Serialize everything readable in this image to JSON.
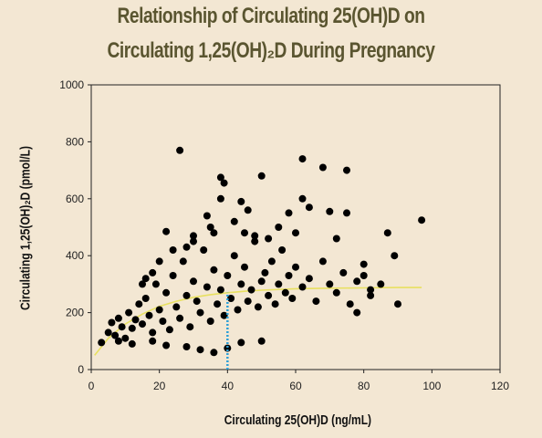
{
  "slide": {
    "title_line1": "Relationship of Circulating 25(OH)D on",
    "title_line2": "Circulating 1,25(OH)₂D During Pregnancy",
    "background": "#f3e7d3",
    "title_color": "#5a5530"
  },
  "chart_data": {
    "type": "scatter",
    "title": "Relationship of Circulating 25(OH)D on Circulating 1,25(OH)₂D During Pregnancy",
    "xlabel": "Circulating 25(OH)D (ng/mL)",
    "ylabel": "Circulating 1,25(OH)₂D (pmol/L)",
    "xlim": [
      0,
      120
    ],
    "ylim": [
      0,
      1000
    ],
    "xticks": [
      "0",
      "20",
      "40",
      "60",
      "80",
      "100",
      "120"
    ],
    "yticks": [
      "0",
      "200",
      "400",
      "600",
      "800",
      "1000"
    ],
    "grid": false,
    "legend": "none",
    "point_color": "#000000",
    "fit_color": "#e8e060",
    "reference_line_color": "#2a9fd8",
    "series": [
      {
        "values_note_free": true,
        "points": [
          [
            3,
            95
          ],
          [
            5,
            130
          ],
          [
            6,
            165
          ],
          [
            7,
            120
          ],
          [
            8,
            180
          ],
          [
            9,
            150
          ],
          [
            10,
            110
          ],
          [
            11,
            200
          ],
          [
            12,
            145
          ],
          [
            13,
            175
          ],
          [
            14,
            230
          ],
          [
            15,
            160
          ],
          [
            16,
            250
          ],
          [
            17,
            190
          ],
          [
            18,
            130
          ],
          [
            19,
            300
          ],
          [
            20,
            210
          ],
          [
            21,
            170
          ],
          [
            22,
            270
          ],
          [
            23,
            140
          ],
          [
            24,
            330
          ],
          [
            25,
            220
          ],
          [
            26,
            180
          ],
          [
            27,
            380
          ],
          [
            28,
            260
          ],
          [
            29,
            150
          ],
          [
            30,
            310
          ],
          [
            31,
            240
          ],
          [
            32,
            200
          ],
          [
            33,
            420
          ],
          [
            34,
            290
          ],
          [
            35,
            170
          ],
          [
            36,
            350
          ],
          [
            37,
            230
          ],
          [
            38,
            280
          ],
          [
            39,
            190
          ],
          [
            40,
            330
          ],
          [
            41,
            250
          ],
          [
            42,
            400
          ],
          [
            43,
            210
          ],
          [
            44,
            300
          ],
          [
            45,
            360
          ],
          [
            46,
            240
          ],
          [
            47,
            280
          ],
          [
            48,
            450
          ],
          [
            49,
            220
          ],
          [
            50,
            310
          ],
          [
            51,
            340
          ],
          [
            52,
            260
          ],
          [
            53,
            380
          ],
          [
            54,
            230
          ],
          [
            55,
            300
          ],
          [
            56,
            420
          ],
          [
            57,
            270
          ],
          [
            58,
            330
          ],
          [
            59,
            250
          ],
          [
            60,
            360
          ],
          [
            62,
            290
          ],
          [
            64,
            320
          ],
          [
            66,
            240
          ],
          [
            68,
            380
          ],
          [
            70,
            300
          ],
          [
            72,
            270
          ],
          [
            74,
            340
          ],
          [
            76,
            230
          ],
          [
            78,
            310
          ],
          [
            80,
            370
          ],
          [
            82,
            260
          ],
          [
            85,
            300
          ],
          [
            90,
            230
          ],
          [
            26,
            770
          ],
          [
            38,
            675
          ],
          [
            39,
            655
          ],
          [
            38,
            600
          ],
          [
            44,
            590
          ],
          [
            50,
            680
          ],
          [
            62,
            740
          ],
          [
            68,
            710
          ],
          [
            75,
            700
          ],
          [
            97,
            525
          ],
          [
            87,
            480
          ],
          [
            89,
            400
          ],
          [
            62,
            600
          ],
          [
            64,
            570
          ],
          [
            75,
            550
          ],
          [
            58,
            550
          ],
          [
            70,
            555
          ],
          [
            46,
            560
          ],
          [
            34,
            540
          ],
          [
            42,
            520
          ],
          [
            80,
            330
          ],
          [
            78,
            200
          ],
          [
            82,
            280
          ],
          [
            72,
            460
          ],
          [
            60,
            480
          ],
          [
            55,
            500
          ],
          [
            45,
            480
          ],
          [
            30,
            470
          ],
          [
            22,
            485
          ],
          [
            35,
            500
          ],
          [
            8,
            100
          ],
          [
            12,
            90
          ],
          [
            18,
            100
          ],
          [
            22,
            85
          ],
          [
            28,
            80
          ],
          [
            32,
            70
          ],
          [
            36,
            60
          ],
          [
            40,
            75
          ],
          [
            44,
            95
          ],
          [
            50,
            100
          ],
          [
            15,
            300
          ],
          [
            16,
            320
          ],
          [
            18,
            340
          ],
          [
            20,
            380
          ],
          [
            24,
            420
          ],
          [
            28,
            430
          ],
          [
            30,
            450
          ],
          [
            36,
            480
          ],
          [
            48,
            470
          ],
          [
            52,
            460
          ]
        ]
      },
      {
        "name": "",
        "fit_x": [
          1,
          5,
          10,
          15,
          20,
          25,
          30,
          35,
          40,
          45,
          50,
          60,
          70,
          80,
          90,
          97
        ],
        "fit_y": [
          50,
          110,
          160,
          195,
          222,
          240,
          254,
          263,
          270,
          275,
          279,
          284,
          286,
          287,
          288,
          288
        ]
      }
    ],
    "reference_x": 40
  }
}
